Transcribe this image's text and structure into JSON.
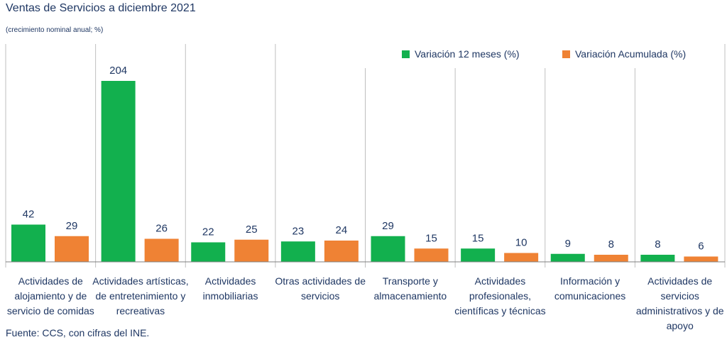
{
  "title": "Ventas de Servicios a diciembre 2021",
  "subtitle": "(crecimiento nominal anual; %)",
  "source": "Fuente: CCS, con cifras del INE.",
  "colors": {
    "series1": "#12b04e",
    "series2": "#ef8234",
    "text": "#1f3763",
    "gridline": "#bfbfbf",
    "axis": "#7f7f7f"
  },
  "chart_data": {
    "type": "bar",
    "title": "Ventas de Servicios a diciembre 2021",
    "subtitle": "(crecimiento nominal anual; %)",
    "xlabel": "",
    "ylabel": "",
    "ylim": [
      0,
      210
    ],
    "grid": false,
    "legend": "top-right",
    "categories": [
      [
        "Actividades de",
        "alojamiento y de",
        "servicio de comidas"
      ],
      [
        "Actividades artísticas,",
        "de entretenimiento y",
        "recreativas"
      ],
      [
        "Actividades",
        "inmobiliarias"
      ],
      [
        "Otras actividades de",
        "servicios"
      ],
      [
        "Transporte y",
        "almacenamiento"
      ],
      [
        "Actividades",
        "profesionales,",
        "científicas y técnicas"
      ],
      [
        "Información y",
        "comunicaciones"
      ],
      [
        "Actividades de",
        "servicios",
        "administrativos y de",
        "apoyo"
      ]
    ],
    "series": [
      {
        "name": "Variación 12 meses (%)",
        "values": [
          42,
          204,
          22,
          23,
          29,
          15,
          9,
          8
        ]
      },
      {
        "name": "Variación Acumulada (%)",
        "values": [
          29,
          26,
          25,
          24,
          15,
          10,
          8,
          6
        ]
      }
    ]
  }
}
